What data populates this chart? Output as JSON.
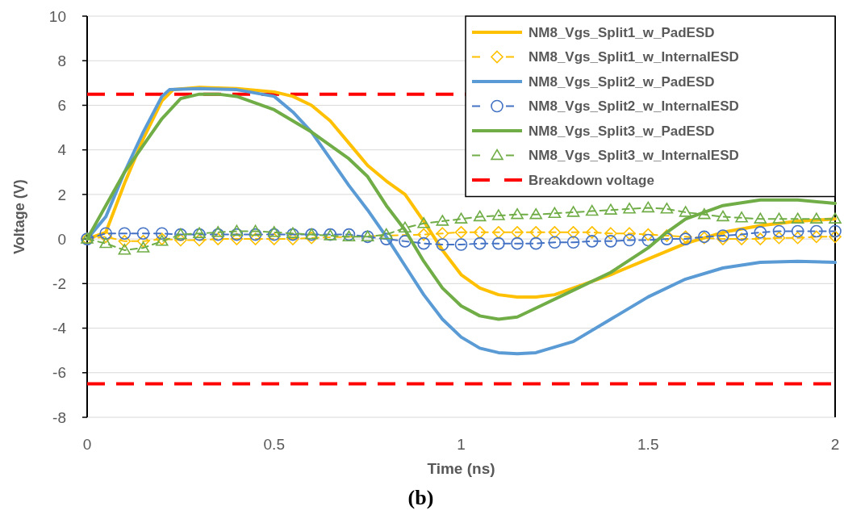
{
  "chart_data": {
    "type": "line",
    "xlabel": "Time (ns)",
    "ylabel": "Voltage (V)",
    "xlim": [
      0,
      2
    ],
    "xticks": [
      0,
      0.5,
      1,
      1.5,
      2
    ],
    "ylim": [
      -8,
      10
    ],
    "yticks": [
      -8,
      -6,
      -4,
      -2,
      0,
      2,
      4,
      6,
      8,
      10
    ],
    "grid": "y",
    "legend": "top right",
    "annotations": [
      "(b)"
    ],
    "ref_lines": [
      {
        "axis": "y",
        "value": 6.5,
        "label": "Breakdown voltage",
        "color": "#ff0000",
        "line_style": "dashed"
      },
      {
        "axis": "y",
        "value": -6.5,
        "color": "#ff0000",
        "line_style": "dashed"
      }
    ],
    "series": [
      {
        "name": "NM8_Vgs_Split1_w_PadESD",
        "color": "#ffc000",
        "line_style": "solid",
        "marker": "none",
        "x": [
          0,
          0.05,
          0.1,
          0.15,
          0.2,
          0.23,
          0.3,
          0.4,
          0.5,
          0.55,
          0.6,
          0.65,
          0.7,
          0.75,
          0.8,
          0.85,
          0.9,
          0.95,
          1.0,
          1.05,
          1.1,
          1.15,
          1.2,
          1.25,
          1.3,
          1.4,
          1.5,
          1.6,
          1.7,
          1.8,
          1.9,
          2.0
        ],
        "values": [
          0,
          0.3,
          2.5,
          4.5,
          6.2,
          6.7,
          6.8,
          6.75,
          6.6,
          6.4,
          6.0,
          5.3,
          4.3,
          3.3,
          2.6,
          2.0,
          0.8,
          -0.5,
          -1.6,
          -2.2,
          -2.5,
          -2.6,
          -2.6,
          -2.5,
          -2.2,
          -1.6,
          -0.9,
          -0.2,
          0.3,
          0.6,
          0.8,
          0.9
        ]
      },
      {
        "name": "NM8_Vgs_Split1_w_InternalESD",
        "color": "#ffc000",
        "line_style": "dashed",
        "marker": "diamond",
        "x": [
          0,
          0.05,
          0.1,
          0.15,
          0.2,
          0.25,
          0.3,
          0.35,
          0.4,
          0.45,
          0.5,
          0.55,
          0.6,
          0.9,
          0.95,
          1.0,
          1.05,
          1.1,
          1.15,
          1.2,
          1.25,
          1.3,
          1.35,
          1.4,
          1.45,
          1.5,
          1.55,
          1.6,
          1.65,
          1.7,
          1.75,
          1.8,
          1.85,
          1.9,
          1.95,
          2.0
        ],
        "values": [
          0,
          0.1,
          -0.1,
          -0.1,
          0,
          -0.05,
          -0.05,
          0,
          0,
          0,
          0,
          0,
          0.05,
          0.2,
          0.25,
          0.3,
          0.3,
          0.3,
          0.3,
          0.3,
          0.3,
          0.3,
          0.3,
          0.25,
          0.25,
          0.2,
          0.15,
          0.1,
          0.05,
          0,
          0,
          0,
          0.05,
          0.05,
          0.1,
          0.1
        ]
      },
      {
        "name": "NM8_Vgs_Split2_w_PadESD",
        "color": "#5b9bd5",
        "line_style": "solid",
        "marker": "none",
        "x": [
          0,
          0.05,
          0.1,
          0.15,
          0.2,
          0.22,
          0.3,
          0.4,
          0.5,
          0.55,
          0.6,
          0.65,
          0.7,
          0.75,
          0.8,
          0.85,
          0.9,
          0.95,
          1.0,
          1.05,
          1.1,
          1.15,
          1.2,
          1.3,
          1.4,
          1.5,
          1.6,
          1.7,
          1.8,
          1.9,
          2.0
        ],
        "values": [
          0,
          1.0,
          3.0,
          4.8,
          6.4,
          6.7,
          6.75,
          6.7,
          6.4,
          5.7,
          4.8,
          3.6,
          2.4,
          1.3,
          0.1,
          -1.2,
          -2.5,
          -3.6,
          -4.4,
          -4.9,
          -5.1,
          -5.15,
          -5.1,
          -4.6,
          -3.6,
          -2.6,
          -1.8,
          -1.3,
          -1.05,
          -1.0,
          -1.05
        ]
      },
      {
        "name": "NM8_Vgs_Split2_w_InternalESD",
        "color": "#4472c4",
        "line_style": "dashed",
        "marker": "circle",
        "x": [
          0,
          0.05,
          0.1,
          0.15,
          0.2,
          0.25,
          0.3,
          0.35,
          0.4,
          0.45,
          0.5,
          0.55,
          0.6,
          0.65,
          0.7,
          0.75,
          0.8,
          0.85,
          0.9,
          0.95,
          1.0,
          1.05,
          1.1,
          1.15,
          1.2,
          1.25,
          1.3,
          1.35,
          1.4,
          1.45,
          1.5,
          1.55,
          1.6,
          1.65,
          1.7,
          1.75,
          1.8,
          1.85,
          1.9,
          1.95,
          2.0
        ],
        "values": [
          0,
          0.25,
          0.25,
          0.25,
          0.25,
          0.2,
          0.2,
          0.2,
          0.2,
          0.2,
          0.2,
          0.2,
          0.2,
          0.2,
          0.2,
          0.1,
          0,
          -0.1,
          -0.2,
          -0.25,
          -0.25,
          -0.2,
          -0.2,
          -0.2,
          -0.2,
          -0.15,
          -0.15,
          -0.1,
          -0.1,
          -0.05,
          -0.05,
          0,
          0,
          0.1,
          0.15,
          0.2,
          0.3,
          0.35,
          0.35,
          0.35,
          0.35
        ]
      },
      {
        "name": "NM8_Vgs_Split3_w_PadESD",
        "color": "#70ad47",
        "line_style": "solid",
        "marker": "none",
        "x": [
          0,
          0.05,
          0.1,
          0.15,
          0.2,
          0.25,
          0.3,
          0.35,
          0.4,
          0.5,
          0.6,
          0.7,
          0.75,
          0.8,
          0.85,
          0.9,
          0.95,
          1.0,
          1.05,
          1.1,
          1.15,
          1.2,
          1.3,
          1.4,
          1.5,
          1.55,
          1.6,
          1.7,
          1.8,
          1.9,
          2.0
        ],
        "values": [
          0,
          1.5,
          3.0,
          4.2,
          5.4,
          6.3,
          6.5,
          6.5,
          6.4,
          5.8,
          4.8,
          3.6,
          2.8,
          1.5,
          0.4,
          -1.0,
          -2.2,
          -3.0,
          -3.45,
          -3.6,
          -3.5,
          -3.1,
          -2.3,
          -1.5,
          -0.4,
          0.3,
          0.9,
          1.5,
          1.75,
          1.75,
          1.6
        ]
      },
      {
        "name": "NM8_Vgs_Split3_w_InternalESD",
        "color": "#70ad47",
        "line_style": "dashed",
        "marker": "triangle",
        "x": [
          0,
          0.05,
          0.1,
          0.15,
          0.2,
          0.25,
          0.3,
          0.35,
          0.4,
          0.45,
          0.5,
          0.55,
          0.6,
          0.65,
          0.7,
          0.75,
          0.8,
          0.85,
          0.9,
          0.95,
          1.0,
          1.05,
          1.1,
          1.15,
          1.2,
          1.25,
          1.3,
          1.35,
          1.4,
          1.45,
          1.5,
          1.55,
          1.6,
          1.65,
          1.7,
          1.75,
          1.8,
          1.85,
          1.9,
          1.95,
          2.0
        ],
        "values": [
          0,
          -0.2,
          -0.5,
          -0.4,
          -0.1,
          0.2,
          0.25,
          0.3,
          0.35,
          0.35,
          0.3,
          0.25,
          0.2,
          0.15,
          0.1,
          0.1,
          0.2,
          0.5,
          0.7,
          0.8,
          0.9,
          1.0,
          1.05,
          1.1,
          1.1,
          1.15,
          1.2,
          1.25,
          1.3,
          1.35,
          1.4,
          1.35,
          1.2,
          1.1,
          1.0,
          0.95,
          0.9,
          0.9,
          0.9,
          0.9,
          0.9
        ]
      }
    ]
  }
}
